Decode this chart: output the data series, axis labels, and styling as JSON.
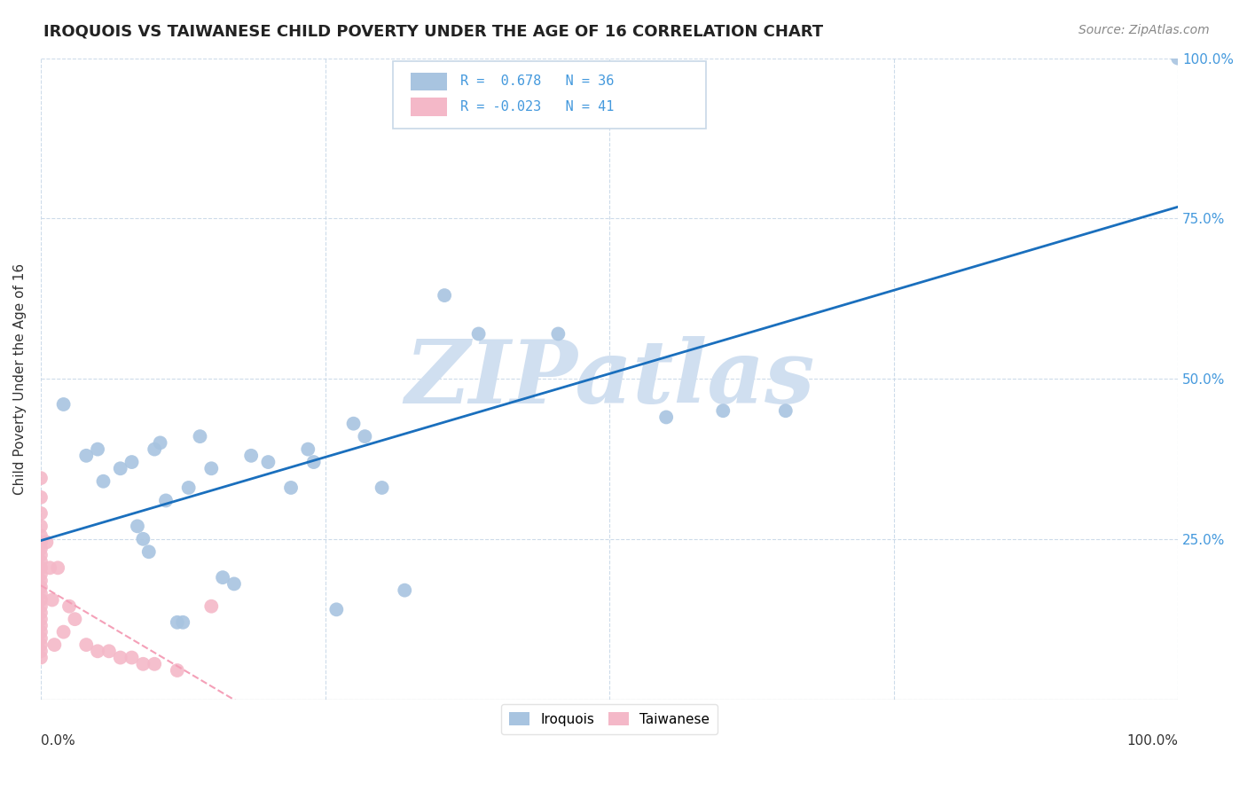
{
  "title": "IROQUOIS VS TAIWANESE CHILD POVERTY UNDER THE AGE OF 16 CORRELATION CHART",
  "source": "Source: ZipAtlas.com",
  "ylabel": "Child Poverty Under the Age of 16",
  "xlim": [
    0,
    1.0
  ],
  "ylim": [
    0,
    1.0
  ],
  "xticks": [
    0.0,
    0.25,
    0.5,
    0.75,
    1.0
  ],
  "yticks": [
    0.0,
    0.25,
    0.5,
    0.75,
    1.0
  ],
  "xticklabels_left": "0.0%",
  "xticklabels_right": "100.0%",
  "yticklabels": [
    "",
    "25.0%",
    "50.0%",
    "75.0%",
    "100.0%"
  ],
  "iroquois_color": "#a8c4e0",
  "taiwanese_color": "#f4b8c8",
  "iroquois_line_color": "#1a6fbd",
  "taiwanese_line_color": "#f4a0b8",
  "iroquois_R": 0.678,
  "iroquois_N": 36,
  "taiwanese_R": -0.023,
  "taiwanese_N": 41,
  "watermark": "ZIPatlas",
  "watermark_color": "#d0dff0",
  "legend_label_1": "Iroquois",
  "legend_label_2": "Taiwanese",
  "iroquois_x": [
    0.02,
    0.04,
    0.05,
    0.055,
    0.07,
    0.08,
    0.085,
    0.09,
    0.095,
    0.1,
    0.105,
    0.11,
    0.12,
    0.125,
    0.13,
    0.14,
    0.15,
    0.16,
    0.17,
    0.185,
    0.2,
    0.22,
    0.235,
    0.24,
    0.26,
    0.275,
    0.285,
    0.3,
    0.32,
    0.355,
    0.385,
    0.455,
    0.55,
    0.6,
    0.655,
    1.0
  ],
  "iroquois_y": [
    0.46,
    0.38,
    0.39,
    0.34,
    0.36,
    0.37,
    0.27,
    0.25,
    0.23,
    0.39,
    0.4,
    0.31,
    0.12,
    0.12,
    0.33,
    0.41,
    0.36,
    0.19,
    0.18,
    0.38,
    0.37,
    0.33,
    0.39,
    0.37,
    0.14,
    0.43,
    0.41,
    0.33,
    0.17,
    0.63,
    0.57,
    0.57,
    0.44,
    0.45,
    0.45,
    1.0
  ],
  "taiwanese_x": [
    0.0,
    0.0,
    0.0,
    0.0,
    0.0,
    0.0,
    0.0,
    0.0,
    0.0,
    0.0,
    0.0,
    0.0,
    0.0,
    0.0,
    0.0,
    0.0,
    0.0,
    0.0,
    0.0,
    0.0,
    0.0,
    0.0,
    0.0,
    0.0,
    0.005,
    0.008,
    0.01,
    0.012,
    0.015,
    0.02,
    0.025,
    0.03,
    0.04,
    0.05,
    0.06,
    0.07,
    0.08,
    0.09,
    0.1,
    0.12,
    0.15
  ],
  "taiwanese_y": [
    0.345,
    0.315,
    0.29,
    0.27,
    0.255,
    0.245,
    0.235,
    0.225,
    0.215,
    0.205,
    0.195,
    0.185,
    0.175,
    0.165,
    0.155,
    0.145,
    0.135,
    0.125,
    0.115,
    0.105,
    0.095,
    0.085,
    0.075,
    0.065,
    0.245,
    0.205,
    0.155,
    0.085,
    0.205,
    0.105,
    0.145,
    0.125,
    0.085,
    0.075,
    0.075,
    0.065,
    0.065,
    0.055,
    0.055,
    0.045,
    0.145
  ],
  "background_color": "#ffffff",
  "grid_color": "#c8d8e8",
  "title_fontsize": 13,
  "axis_label_fontsize": 11,
  "tick_fontsize": 11,
  "tick_color_right": "#4499dd",
  "legend_fontsize": 11,
  "source_fontsize": 10,
  "source_color": "#888888"
}
